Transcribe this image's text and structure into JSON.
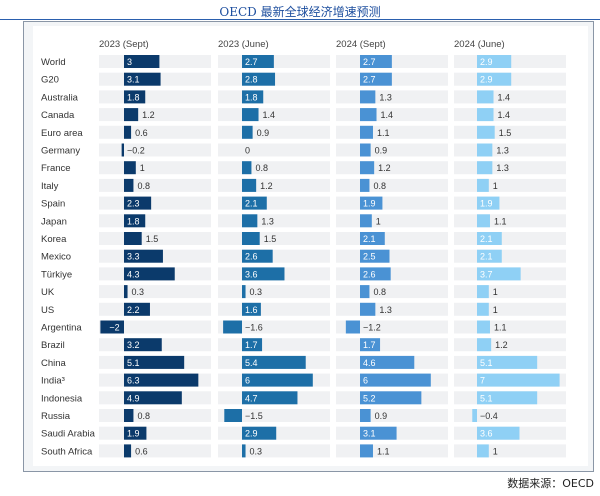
{
  "title": "OECD 最新全球经济增速预测",
  "source": "数据来源：OECD",
  "colors": {
    "2023 (Sept)": "#0b3a6b",
    "2023 (June)": "#1d6fa7",
    "2024 (Sept)": "#4a92d4",
    "2024 (June)": "#8fd0f5",
    "track": "#f0f1f3"
  },
  "chart_data": {
    "type": "bar",
    "orientation": "horizontal",
    "layout": "small-multiples",
    "categories": [
      "World",
      "G20",
      "Australia",
      "Canada",
      "Euro area",
      "Germany",
      "France",
      "Italy",
      "Spain",
      "Japan",
      "Korea",
      "Mexico",
      "Türkiye",
      "UK",
      "US",
      "Argentina",
      "Brazil",
      "China",
      "India³",
      "Indonesia",
      "Russia",
      "Saudi Arabia",
      "South Africa"
    ],
    "series": [
      {
        "name": "2023 (Sept)",
        "values": [
          3,
          3.1,
          1.8,
          1.2,
          0.6,
          -0.2,
          1,
          0.8,
          2.3,
          1.8,
          1.5,
          3.3,
          4.3,
          0.3,
          2.2,
          -2,
          3.2,
          5.1,
          6.3,
          4.9,
          0.8,
          1.9,
          0.6
        ]
      },
      {
        "name": "2023 (June)",
        "values": [
          2.7,
          2.8,
          1.8,
          1.4,
          0.9,
          0,
          0.8,
          1.2,
          2.1,
          1.3,
          1.5,
          2.6,
          3.6,
          0.3,
          1.6,
          -1.6,
          1.7,
          5.4,
          6,
          4.7,
          -1.5,
          2.9,
          0.3
        ]
      },
      {
        "name": "2024 (Sept)",
        "values": [
          2.7,
          2.7,
          1.3,
          1.4,
          1.1,
          0.9,
          1.2,
          0.8,
          1.9,
          1,
          2.1,
          2.5,
          2.6,
          0.8,
          1.3,
          -1.2,
          1.7,
          4.6,
          6,
          5.2,
          0.9,
          3.1,
          1.1
        ]
      },
      {
        "name": "2024 (June)",
        "values": [
          2.9,
          2.9,
          1.4,
          1.4,
          1.5,
          1.3,
          1.3,
          1,
          1.9,
          1.1,
          2.1,
          2.1,
          3.7,
          1,
          1,
          1.1,
          1.2,
          5.1,
          7,
          5.1,
          -0.4,
          3.6,
          1
        ]
      }
    ],
    "value_labels": [
      [
        "3",
        "3.1",
        "1.8",
        "1.2",
        "0.6",
        "−0.2",
        "1",
        "0.8",
        "2.3",
        "1.8",
        "1.5",
        "3.3",
        "4.3",
        "0.3",
        "2.2",
        "−2",
        "3.2",
        "5.1",
        "6.3",
        "4.9",
        "0.8",
        "1.9",
        "0.6"
      ],
      [
        "2.7",
        "2.8",
        "1.8",
        "1.4",
        "0.9",
        "0",
        "0.8",
        "1.2",
        "2.1",
        "1.3",
        "1.5",
        "2.6",
        "3.6",
        "0.3",
        "1.6",
        "−1.6",
        "1.7",
        "5.4",
        "6",
        "4.7",
        "−1.5",
        "2.9",
        "0.3"
      ],
      [
        "2.7",
        "2.7",
        "1.3",
        "1.4",
        "1.1",
        "0.9",
        "1.2",
        "0.8",
        "1.9",
        "1",
        "2.1",
        "2.5",
        "2.6",
        "0.8",
        "1.3",
        "−1.2",
        "1.7",
        "4.6",
        "6",
        "5.2",
        "0.9",
        "3.1",
        "1.1"
      ],
      [
        "2.9",
        "2.9",
        "1.4",
        "1.4",
        "1.5",
        "1.3",
        "1.3",
        "1",
        "1.9",
        "1.1",
        "2.1",
        "2.1",
        "3.7",
        "1",
        "1",
        "1.1",
        "1.2",
        "5.1",
        "7",
        "5.1",
        "−0.4",
        "3.6",
        "1"
      ]
    ],
    "xlim": [
      -2.1,
      7.1
    ],
    "grid": false,
    "legend": "none"
  }
}
